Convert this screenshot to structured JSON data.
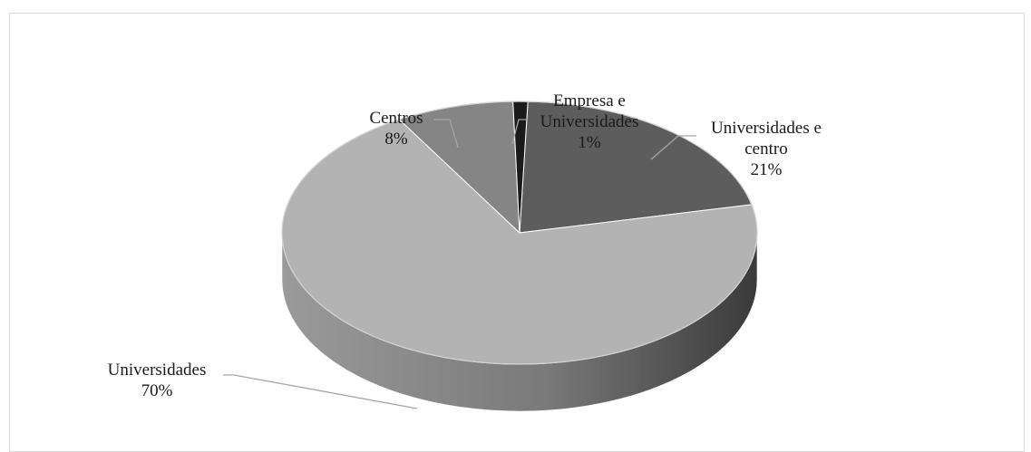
{
  "chart_data": {
    "type": "pie",
    "title": "",
    "slices": [
      {
        "label_lines": [
          "Universidades e",
          "centro"
        ],
        "value": 21,
        "percent_label": "21%",
        "color": "#5d5d5d",
        "side_color": "#3c3c3c"
      },
      {
        "label_lines": [
          "Universidades"
        ],
        "value": 70,
        "percent_label": "70%",
        "color": "#b3b3b3",
        "side_color": "#8a8a8a"
      },
      {
        "label_lines": [
          "Centros"
        ],
        "value": 8,
        "percent_label": "8%",
        "color": "#858585",
        "side_color": "#5e5e5e"
      },
      {
        "label_lines": [
          "Empresa e",
          "Universidades"
        ],
        "value": 1,
        "percent_label": "1%",
        "color": "#1a1a1a",
        "side_color": "#0a0a0a"
      }
    ],
    "legend": "none",
    "style": "3d-pie"
  }
}
